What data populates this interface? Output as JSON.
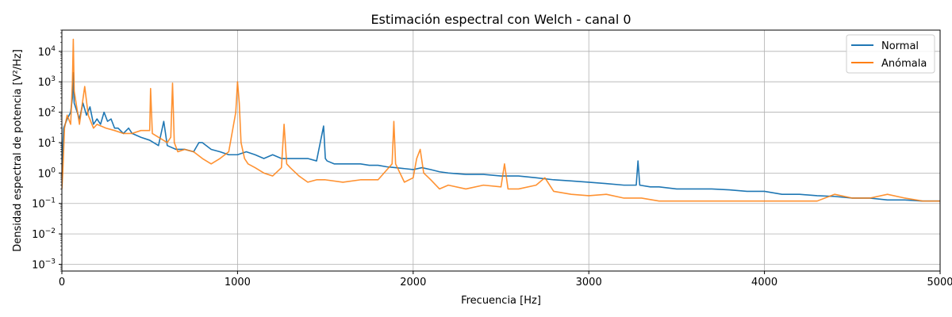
{
  "chart_data": {
    "type": "line",
    "title": "Estimación espectral con Welch - canal 0",
    "xlabel": "Frecuencia [Hz]",
    "ylabel": "Densidad espectral de potencia [V²/Hz]",
    "xlim": [
      0,
      5000
    ],
    "ylim": [
      0.0006,
      50000
    ],
    "yscale": "log",
    "grid": true,
    "legend_position": "top-right",
    "x_ticks": [
      0,
      1000,
      2000,
      3000,
      4000,
      5000
    ],
    "x_tick_labels": [
      "0",
      "1000",
      "2000",
      "3000",
      "4000",
      "5000"
    ],
    "y_ticks": [
      0.001,
      0.01,
      0.1,
      1,
      10,
      100,
      1000,
      10000
    ],
    "y_tick_labels": [
      {
        "base": "10",
        "exp": "−3"
      },
      {
        "base": "10",
        "exp": "−2"
      },
      {
        "base": "10",
        "exp": "−1"
      },
      {
        "base": "10",
        "exp": "0"
      },
      {
        "base": "10",
        "exp": "1"
      },
      {
        "base": "10",
        "exp": "2"
      },
      {
        "base": "10",
        "exp": "3"
      },
      {
        "base": "10",
        "exp": "4"
      }
    ],
    "series": [
      {
        "name": "Normal",
        "color": "#1f77b4",
        "x": [
          0,
          10,
          30,
          50,
          60,
          65,
          70,
          100,
          120,
          140,
          160,
          180,
          200,
          220,
          240,
          260,
          280,
          300,
          320,
          350,
          380,
          400,
          450,
          500,
          550,
          580,
          600,
          650,
          700,
          750,
          780,
          800,
          850,
          900,
          950,
          1000,
          1050,
          1100,
          1150,
          1200,
          1250,
          1300,
          1350,
          1400,
          1450,
          1490,
          1500,
          1510,
          1550,
          1600,
          1650,
          1700,
          1750,
          1800,
          1850,
          1900,
          1950,
          2000,
          2050,
          2100,
          2150,
          2200,
          2300,
          2400,
          2500,
          2600,
          2700,
          2800,
          2900,
          3000,
          3100,
          3200,
          3270,
          3280,
          3290,
          3350,
          3400,
          3500,
          3600,
          3700,
          3800,
          3900,
          4000,
          4100,
          4200,
          4300,
          4400,
          4500,
          4600,
          4700,
          4800,
          4900,
          5000
        ],
        "y": [
          1.0,
          30,
          60,
          100,
          300,
          2000,
          200,
          60,
          200,
          80,
          150,
          40,
          60,
          40,
          100,
          50,
          60,
          30,
          30,
          20,
          30,
          20,
          15,
          12,
          8,
          50,
          8,
          6,
          6,
          5,
          10,
          10,
          6,
          5,
          4,
          4,
          5,
          4,
          3,
          4,
          3,
          3,
          3,
          3,
          2.5,
          35,
          3,
          2.5,
          2,
          2,
          2,
          2,
          1.8,
          1.8,
          1.6,
          1.5,
          1.4,
          1.3,
          1.5,
          1.3,
          1.1,
          1.0,
          0.9,
          0.9,
          0.8,
          0.8,
          0.7,
          0.6,
          0.55,
          0.5,
          0.45,
          0.4,
          0.4,
          2.5,
          0.4,
          0.35,
          0.35,
          0.3,
          0.3,
          0.3,
          0.28,
          0.25,
          0.25,
          0.2,
          0.2,
          0.18,
          0.17,
          0.15,
          0.15,
          0.13,
          0.13,
          0.12,
          0.12
        ]
      },
      {
        "name": "Anómala",
        "color": "#ff7f0e",
        "x": [
          0,
          5,
          15,
          30,
          50,
          60,
          65,
          70,
          100,
          130,
          150,
          180,
          200,
          250,
          300,
          350,
          400,
          450,
          500,
          505,
          515,
          550,
          600,
          620,
          630,
          640,
          660,
          700,
          750,
          800,
          850,
          900,
          950,
          990,
          1000,
          1010,
          1020,
          1040,
          1060,
          1100,
          1150,
          1200,
          1250,
          1265,
          1280,
          1300,
          1350,
          1400,
          1450,
          1500,
          1600,
          1700,
          1800,
          1880,
          1890,
          1900,
          1950,
          2000,
          2020,
          2040,
          2060,
          2100,
          2150,
          2200,
          2300,
          2400,
          2500,
          2520,
          2540,
          2600,
          2700,
          2750,
          2800,
          2900,
          3000,
          3100,
          3200,
          3300,
          3400,
          3500,
          3600,
          3700,
          3800,
          3900,
          4000,
          4100,
          4200,
          4300,
          4400,
          4500,
          4600,
          4700,
          4800,
          4900,
          5000
        ],
        "y": [
          0.3,
          1.0,
          30,
          80,
          40,
          1000,
          25000,
          500,
          40,
          700,
          80,
          30,
          40,
          30,
          25,
          20,
          20,
          25,
          25,
          600,
          20,
          15,
          10,
          15,
          900,
          10,
          5,
          6,
          5,
          3,
          2,
          3,
          5,
          100,
          1000,
          200,
          10,
          3,
          2,
          1.5,
          1.0,
          0.8,
          1.5,
          40,
          2,
          1.5,
          0.8,
          0.5,
          0.6,
          0.6,
          0.5,
          0.6,
          0.6,
          2,
          50,
          2,
          0.5,
          0.7,
          3,
          6,
          1,
          0.6,
          0.3,
          0.4,
          0.3,
          0.4,
          0.35,
          2,
          0.3,
          0.3,
          0.4,
          0.7,
          0.25,
          0.2,
          0.18,
          0.2,
          0.15,
          0.15,
          0.12,
          0.12,
          0.12,
          0.12,
          0.12,
          0.12,
          0.12,
          0.12,
          0.12,
          0.12,
          0.2,
          0.15,
          0.15,
          0.2,
          0.15,
          0.12,
          0.12
        ]
      }
    ]
  }
}
